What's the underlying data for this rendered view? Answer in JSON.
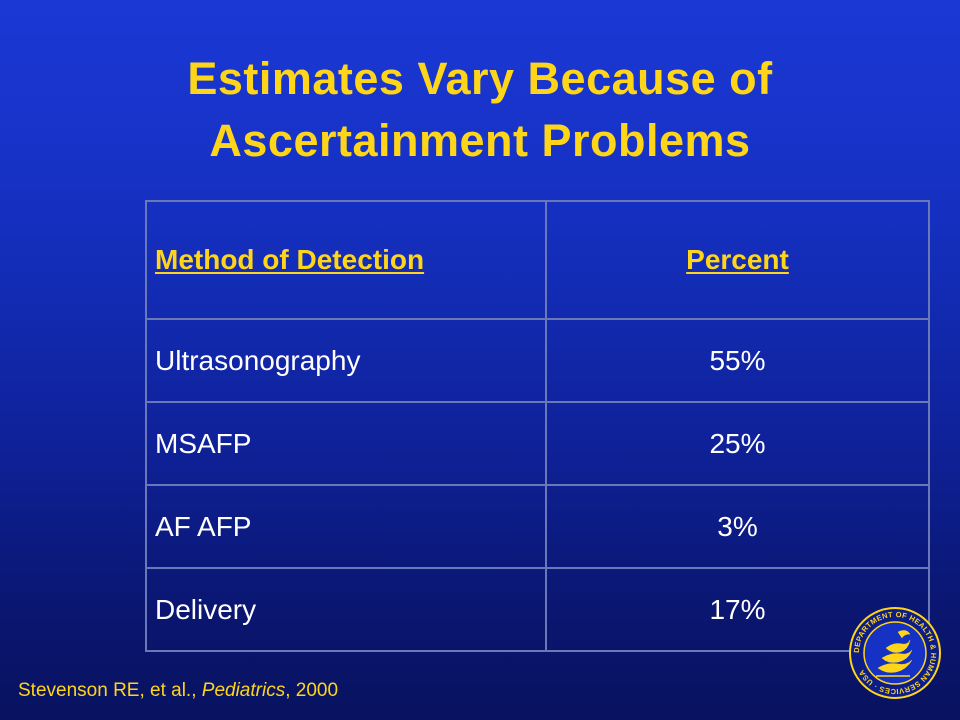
{
  "slide": {
    "title_line1": "Estimates Vary Because of",
    "title_line2": "Ascertainment Problems"
  },
  "table": {
    "headers": {
      "method": "Method of Detection",
      "percent": "Percent"
    },
    "rows": [
      {
        "method": "Ultrasonography",
        "percent": "55%"
      },
      {
        "method": "MSAFP",
        "percent": "25%"
      },
      {
        "method": "AF AFP",
        "percent": "3%"
      },
      {
        "method": "Delivery",
        "percent": "17%"
      }
    ]
  },
  "citation": {
    "authors": "Stevenson RE, et al.,",
    "journal": "Pediatrics",
    "year": ", 2000"
  },
  "seal": {
    "text": "DEPARTMENT OF HEALTH & HUMAN SERVICES · USA"
  },
  "colors": {
    "title": "#ffd51a",
    "body_text": "#ffffff",
    "background_top": "#1b38d6",
    "background_bottom": "#081260",
    "grid_lines": "#6a78b8"
  }
}
